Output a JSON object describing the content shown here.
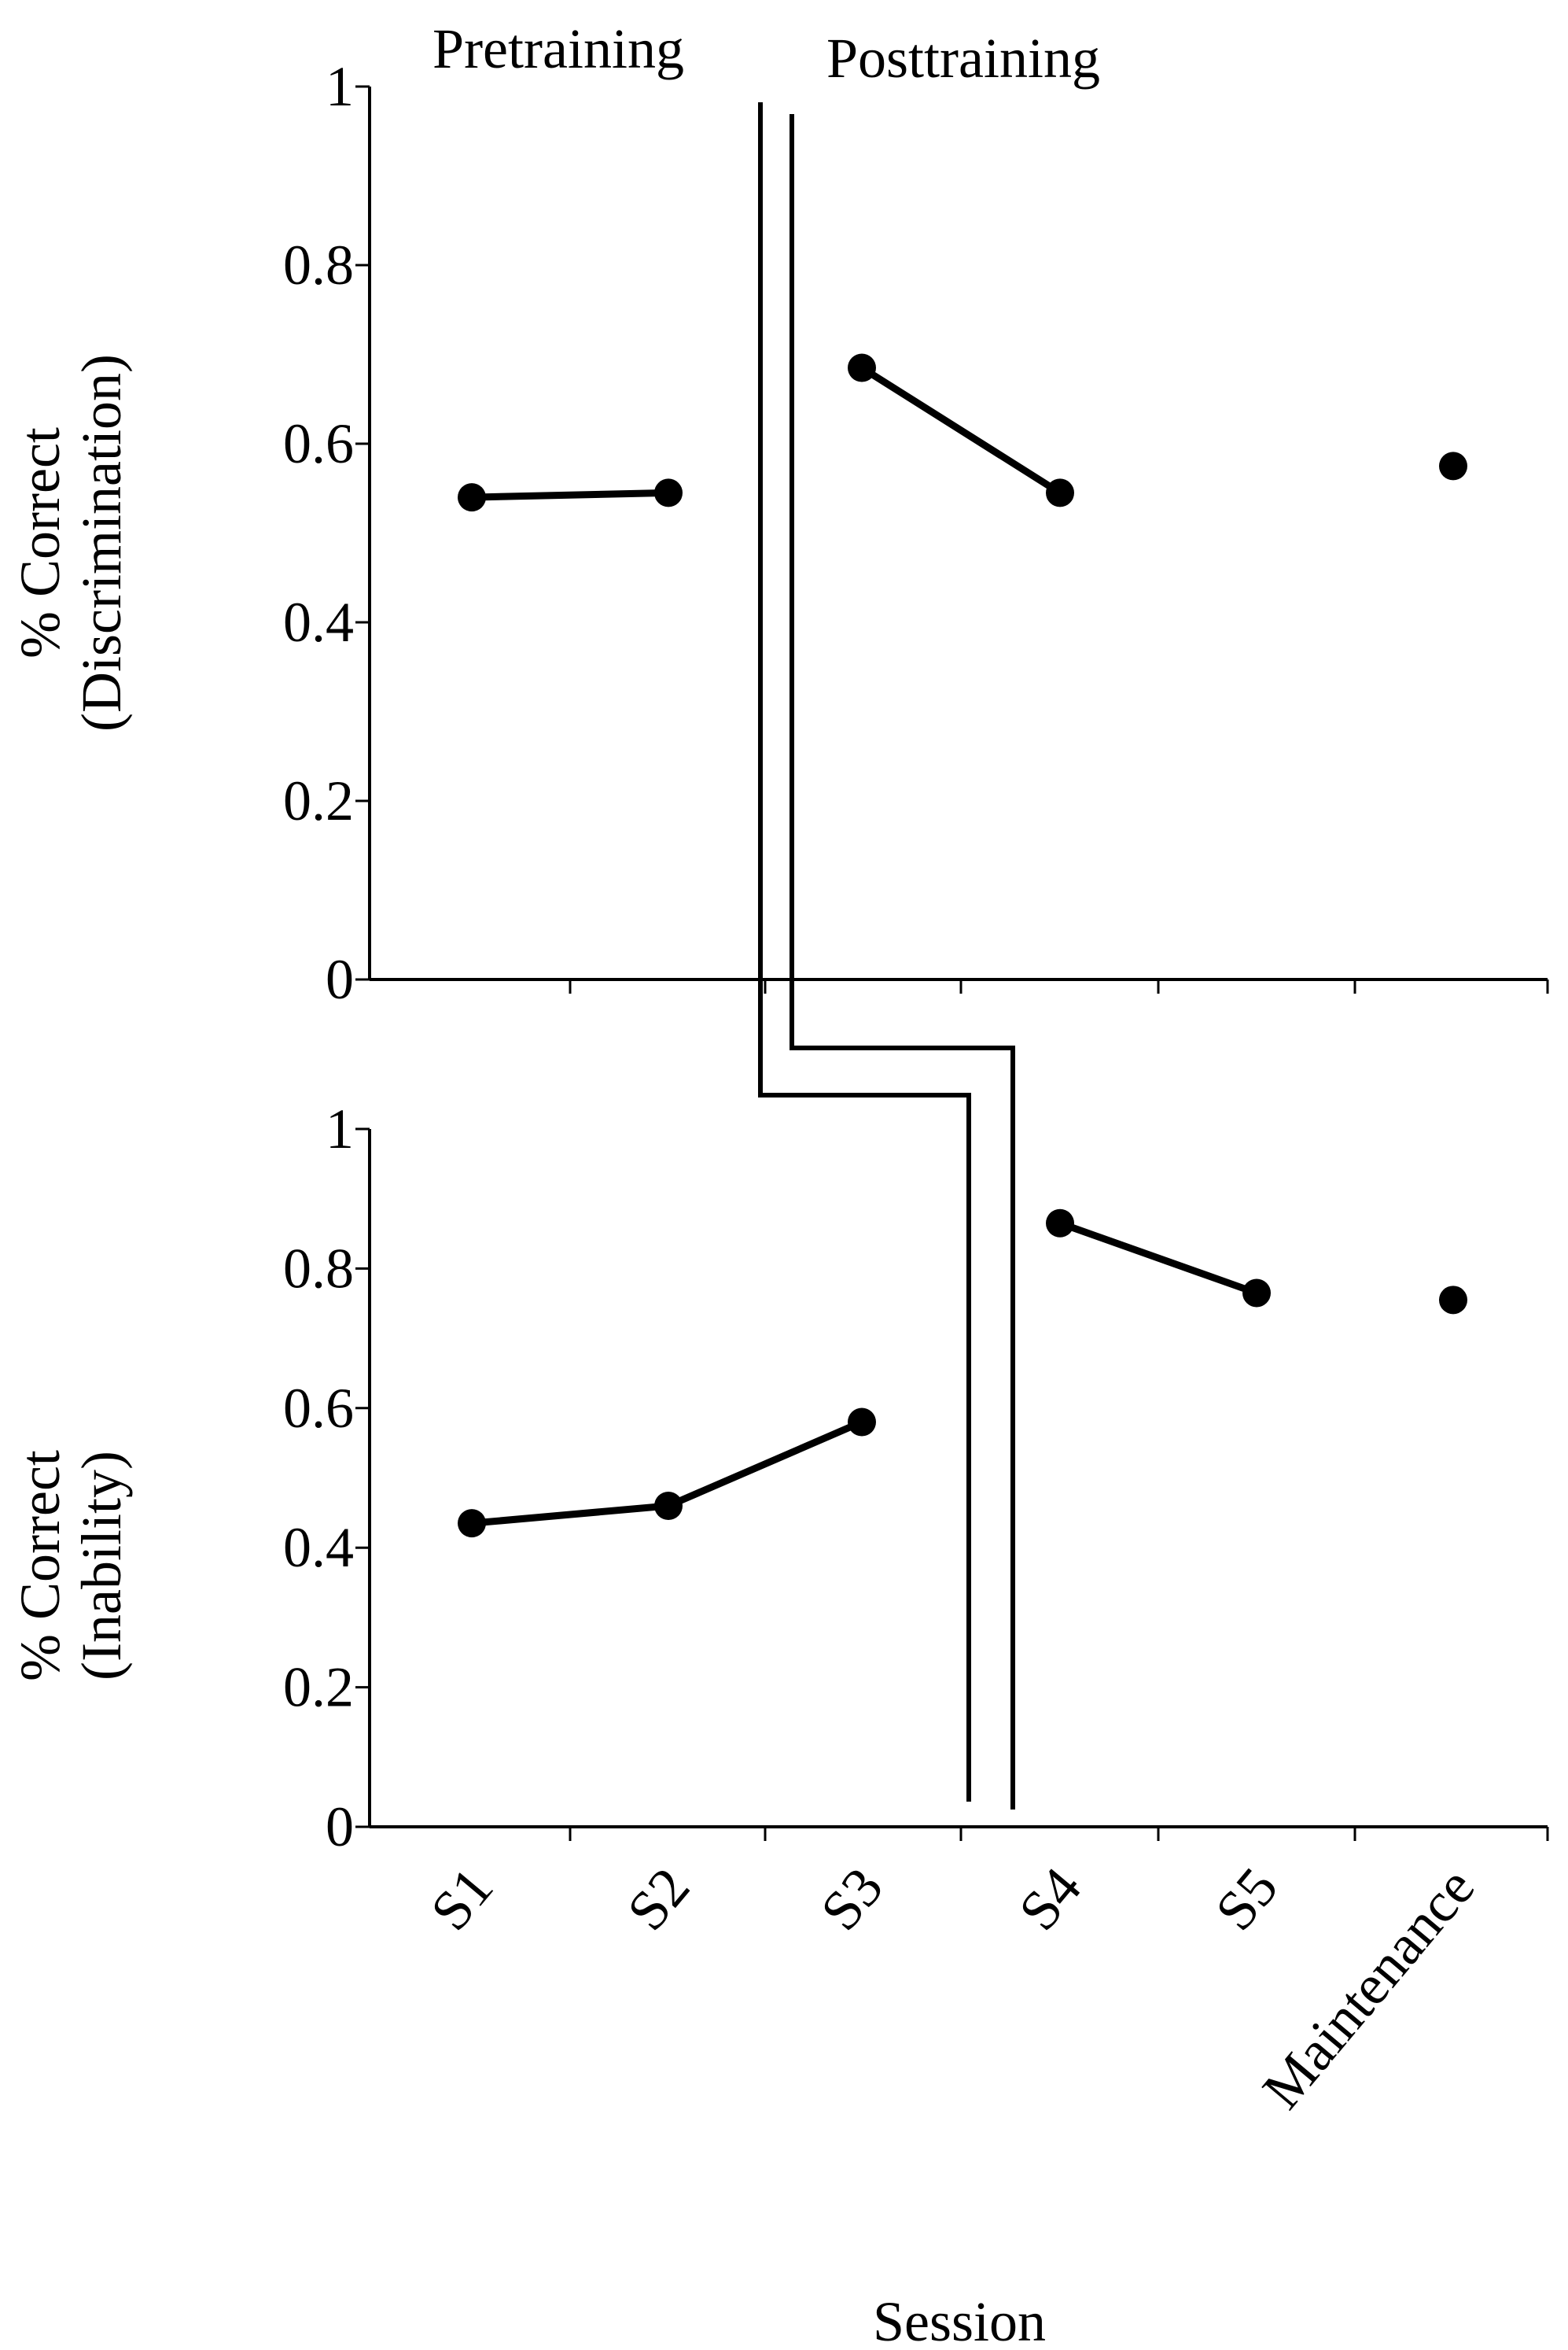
{
  "chart_data": [
    {
      "type": "line",
      "panel": "top",
      "categories": [
        "S1",
        "S2",
        "S3",
        "S4",
        "S5",
        "Maintenance"
      ],
      "ylabel_lines": [
        "% Correct",
        "(Discrimination)"
      ],
      "ylim": [
        0,
        1
      ],
      "yticks": [
        "0",
        "0.2",
        "0.4",
        "0.6",
        "0.8",
        "1"
      ],
      "phase_labels": [
        "Pretraining",
        "Posttraining"
      ],
      "segments": [
        {
          "points": [
            {
              "x": "S1",
              "y": 0.54
            },
            {
              "x": "S2",
              "y": 0.545
            }
          ]
        },
        {
          "points": [
            {
              "x": "S3",
              "y": 0.685
            },
            {
              "x": "S4",
              "y": 0.545
            }
          ]
        },
        {
          "points": [
            {
              "x": "Maintenance",
              "y": 0.575
            }
          ]
        }
      ]
    },
    {
      "type": "line",
      "panel": "bottom",
      "categories": [
        "S1",
        "S2",
        "S3",
        "S4",
        "S5",
        "Maintenance"
      ],
      "ylabel_lines": [
        "% Correct",
        "(Inability)"
      ],
      "ylim": [
        0,
        1
      ],
      "yticks": [
        "0",
        "0.2",
        "0.4",
        "0.6",
        "0.8",
        "1"
      ],
      "xlabel": "Session",
      "segments": [
        {
          "points": [
            {
              "x": "S1",
              "y": 0.435
            },
            {
              "x": "S2",
              "y": 0.46
            },
            {
              "x": "S3",
              "y": 0.58
            }
          ]
        },
        {
          "points": [
            {
              "x": "S4",
              "y": 0.865
            },
            {
              "x": "S5",
              "y": 0.765
            }
          ]
        },
        {
          "points": [
            {
              "x": "Maintenance",
              "y": 0.755
            }
          ]
        }
      ]
    }
  ]
}
